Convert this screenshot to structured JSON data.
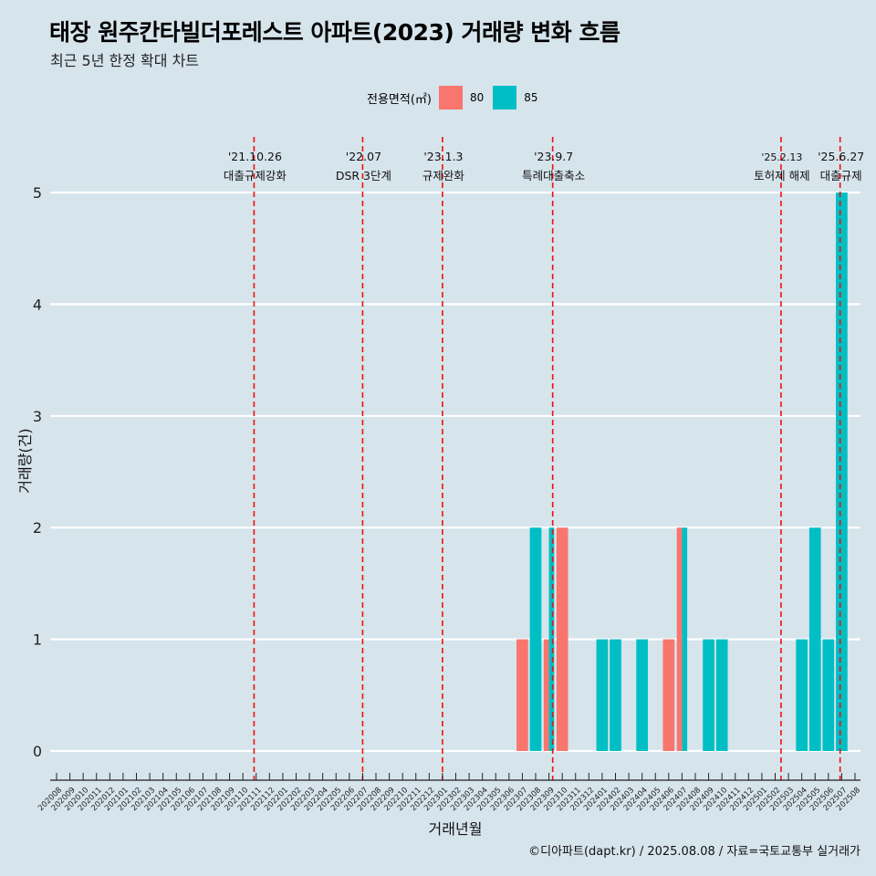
{
  "header": {
    "title": "태장 원주칸타빌더포레스트 아파트(2023) 거래량 변화 흐름",
    "subtitle": "최근 5년 한정 확대 차트"
  },
  "legend": {
    "title": "전용면적(㎡)",
    "items": [
      {
        "label": "80",
        "color": "#f8766d"
      },
      {
        "label": "85",
        "color": "#00bfc4"
      }
    ]
  },
  "caption": "©디아파트(dapt.kr) / 2025.08.08 / 자료=국토교통부 실거래가",
  "chart_data": {
    "type": "bar",
    "xlabel": "거래년월",
    "ylabel": "거래량(건)",
    "ylim": [
      0,
      5
    ],
    "yticks": [
      0,
      1,
      2,
      3,
      4,
      5
    ],
    "grid": true,
    "legend_position": "top",
    "categories": [
      "202008",
      "202009",
      "202010",
      "202011",
      "202012",
      "202101",
      "202102",
      "202103",
      "202104",
      "202105",
      "202106",
      "202107",
      "202108",
      "202109",
      "202110",
      "202111",
      "202112",
      "202201",
      "202202",
      "202203",
      "202204",
      "202205",
      "202206",
      "202207",
      "202208",
      "202209",
      "202210",
      "202211",
      "202212",
      "202301",
      "202302",
      "202303",
      "202304",
      "202305",
      "202306",
      "202307",
      "202308",
      "202309",
      "202310",
      "202311",
      "202312",
      "202401",
      "202402",
      "202403",
      "202404",
      "202405",
      "202406",
      "202407",
      "202408",
      "202409",
      "202410",
      "202411",
      "202412",
      "202501",
      "202502",
      "202503",
      "202504",
      "202505",
      "202506",
      "202507",
      "202508"
    ],
    "series": [
      {
        "name": "80",
        "color": "#f8766d",
        "values": [
          0,
          0,
          0,
          0,
          0,
          0,
          0,
          0,
          0,
          0,
          0,
          0,
          0,
          0,
          0,
          0,
          0,
          0,
          0,
          0,
          0,
          0,
          0,
          0,
          0,
          0,
          0,
          0,
          0,
          0,
          0,
          0,
          0,
          0,
          0,
          1,
          0,
          1,
          2,
          0,
          0,
          0,
          0,
          0,
          0,
          0,
          1,
          2,
          0,
          0,
          0,
          0,
          0,
          0,
          0,
          0,
          0,
          0,
          0,
          0,
          0
        ]
      },
      {
        "name": "85",
        "color": "#00bfc4",
        "values": [
          0,
          0,
          0,
          0,
          0,
          0,
          0,
          0,
          0,
          0,
          0,
          0,
          0,
          0,
          0,
          0,
          0,
          0,
          0,
          0,
          0,
          0,
          0,
          0,
          0,
          0,
          0,
          0,
          0,
          0,
          0,
          0,
          0,
          0,
          0,
          0,
          2,
          2,
          0,
          0,
          0,
          1,
          1,
          0,
          1,
          0,
          0,
          2,
          0,
          1,
          1,
          0,
          0,
          0,
          0,
          0,
          1,
          2,
          1,
          5,
          0
        ]
      }
    ],
    "events": [
      {
        "date": "'21.10.26",
        "label": "대출규제강화",
        "x": 2021.82
      },
      {
        "date": "'22.07",
        "label": "DSR 3단계",
        "x": 2022.5
      },
      {
        "date": "'23.1.3",
        "label": "규제완화",
        "x": 2023.0
      },
      {
        "date": "'23.9.7",
        "label": "특례대출축소",
        "x": 2023.69
      },
      {
        "date": "'25.2.13",
        "label": "토허제 해제",
        "x": 2025.12
      },
      {
        "date": "'25.6.27",
        "label": "대출규제",
        "x": 2025.49
      }
    ]
  }
}
